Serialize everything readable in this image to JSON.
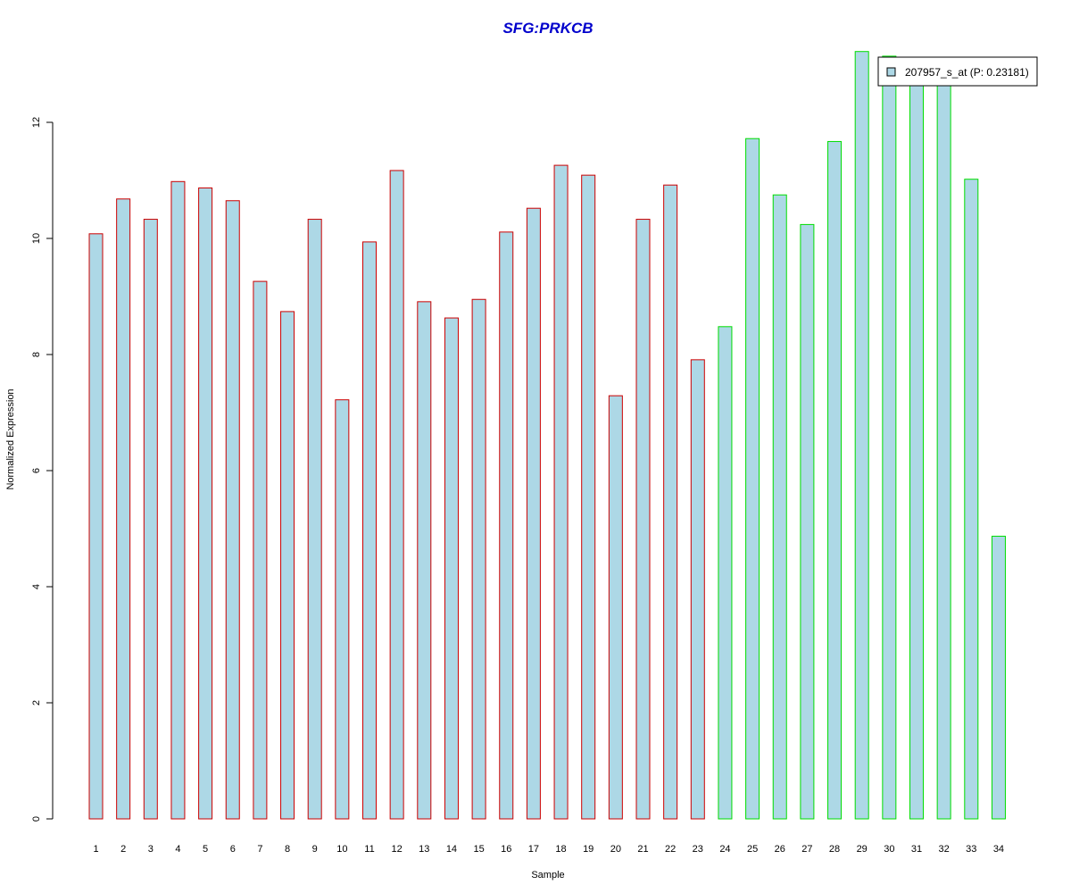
{
  "chart_data": {
    "type": "bar",
    "title": "SFG:PRKCB",
    "xlabel": "Sample",
    "ylabel": "Normalized Expression",
    "ylim": [
      0,
      13.3
    ],
    "yticks": [
      0,
      2,
      4,
      6,
      8,
      10,
      12
    ],
    "categories": [
      "1",
      "2",
      "3",
      "4",
      "5",
      "6",
      "7",
      "8",
      "9",
      "10",
      "11",
      "12",
      "13",
      "14",
      "15",
      "16",
      "17",
      "18",
      "19",
      "20",
      "21",
      "22",
      "23",
      "24",
      "25",
      "26",
      "27",
      "28",
      "29",
      "30",
      "31",
      "32",
      "33",
      "34"
    ],
    "series": [
      {
        "name": "207957_s_at (P: 0.23181)",
        "values": [
          10.08,
          10.68,
          10.33,
          10.98,
          10.87,
          10.65,
          9.26,
          8.74,
          10.33,
          7.22,
          9.94,
          11.17,
          8.91,
          8.63,
          8.95,
          10.11,
          10.52,
          11.26,
          11.09,
          7.29,
          10.33,
          10.92,
          7.91,
          8.48,
          11.72,
          10.75,
          10.24,
          11.67,
          13.22,
          13.14,
          12.92,
          12.88,
          11.02,
          4.87
        ]
      }
    ],
    "group_border_colors": [
      "#cc0000",
      "#cc0000",
      "#cc0000",
      "#cc0000",
      "#cc0000",
      "#cc0000",
      "#cc0000",
      "#cc0000",
      "#cc0000",
      "#cc0000",
      "#cc0000",
      "#cc0000",
      "#cc0000",
      "#cc0000",
      "#cc0000",
      "#cc0000",
      "#cc0000",
      "#cc0000",
      "#cc0000",
      "#cc0000",
      "#cc0000",
      "#cc0000",
      "#cc0000",
      "#00dd00",
      "#00dd00",
      "#00dd00",
      "#00dd00",
      "#00dd00",
      "#00dd00",
      "#00dd00",
      "#00dd00",
      "#00dd00",
      "#00dd00",
      "#00dd00"
    ],
    "bar_fill": "#add8e6",
    "title_color": "#0000cc",
    "legend_position": "top-right",
    "grid": false
  }
}
